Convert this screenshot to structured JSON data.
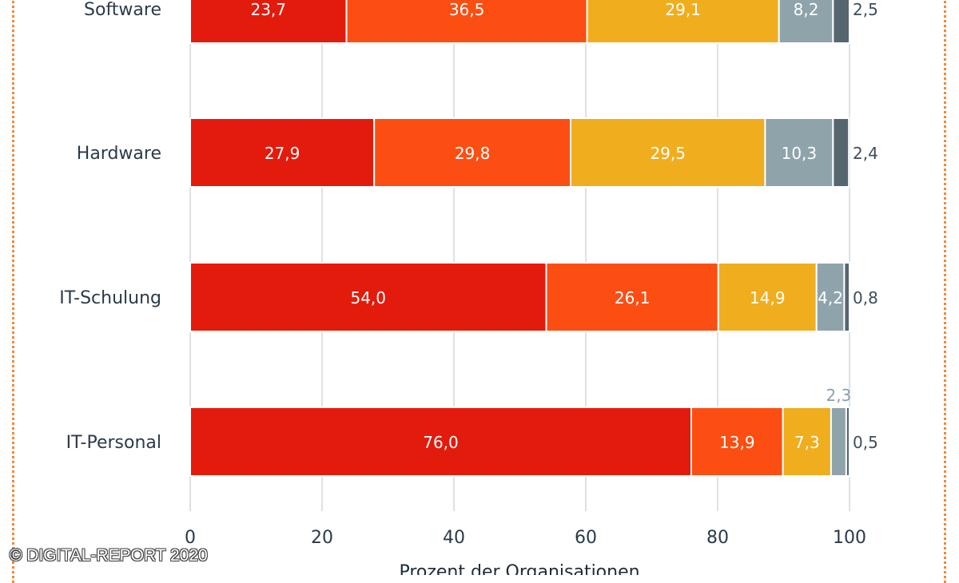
{
  "chart_data": {
    "type": "bar",
    "orientation": "horizontal",
    "stacked": true,
    "categories": [
      "Software",
      "Hardware",
      "IT-Schulung",
      "IT-Personal"
    ],
    "series": [
      {
        "name": "series-1",
        "color": "#e31b0c",
        "values": [
          23.7,
          27.9,
          54.0,
          76.0
        ],
        "labels": [
          "23,7",
          "27,9",
          "54,0",
          "76,0"
        ]
      },
      {
        "name": "series-2",
        "color": "#fc4e12",
        "values": [
          36.5,
          29.8,
          26.1,
          13.9
        ],
        "labels": [
          "36,5",
          "29,8",
          "26,1",
          "13,9"
        ]
      },
      {
        "name": "series-3",
        "color": "#f0ad1e",
        "values": [
          29.1,
          29.5,
          14.9,
          7.3
        ],
        "labels": [
          "29,1",
          "29,5",
          "14,9",
          "7,3"
        ]
      },
      {
        "name": "series-4",
        "color": "#8fa3ab",
        "values": [
          8.2,
          10.3,
          4.2,
          2.3
        ],
        "labels": [
          "8,2",
          "10,3",
          "4,2",
          "2,3"
        ]
      },
      {
        "name": "series-5",
        "color": "#55666f",
        "values": [
          2.5,
          2.4,
          0.8,
          0.5
        ],
        "labels": [
          "2,5",
          "2,4",
          "0,8",
          "0,5"
        ]
      }
    ],
    "xlim": [
      0,
      100
    ],
    "xticks": [
      0,
      20,
      40,
      60,
      80,
      100
    ],
    "xtick_labels": [
      "0",
      "20",
      "40",
      "60",
      "80",
      "100"
    ],
    "xlabel": "Prozent der Organisationen",
    "grid": true
  },
  "copyright": "© DIGITAL-REPORT 2020"
}
